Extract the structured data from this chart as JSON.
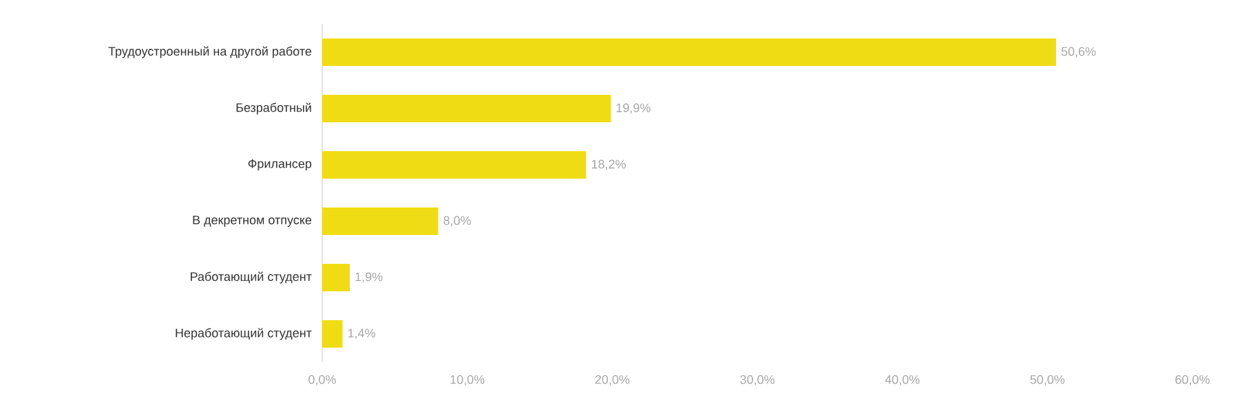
{
  "chart_data": {
    "type": "bar",
    "orientation": "horizontal",
    "categories": [
      "Трудоустроенный на другой работе",
      "Безработный",
      "Фрилансер",
      "В декретном отпуске",
      "Работающий студент",
      "Неработающий студент"
    ],
    "values": [
      50.6,
      19.9,
      18.2,
      8.0,
      1.9,
      1.4
    ],
    "value_labels": [
      "50,6%",
      "19,9%",
      "18,2%",
      "8,0%",
      "1,9%",
      "1,4%"
    ],
    "color": "#f0dc14",
    "xlim": [
      0,
      60
    ],
    "xticks": [
      {
        "value": 0,
        "label": "0,0%"
      },
      {
        "value": 10,
        "label": "10,0%"
      },
      {
        "value": 20,
        "label": "20,0%"
      },
      {
        "value": 30,
        "label": "30,0%"
      },
      {
        "value": 40,
        "label": "40,0%"
      },
      {
        "value": 50,
        "label": "50,0%"
      },
      {
        "value": 60,
        "label": "60,0%"
      }
    ],
    "grid": false
  }
}
